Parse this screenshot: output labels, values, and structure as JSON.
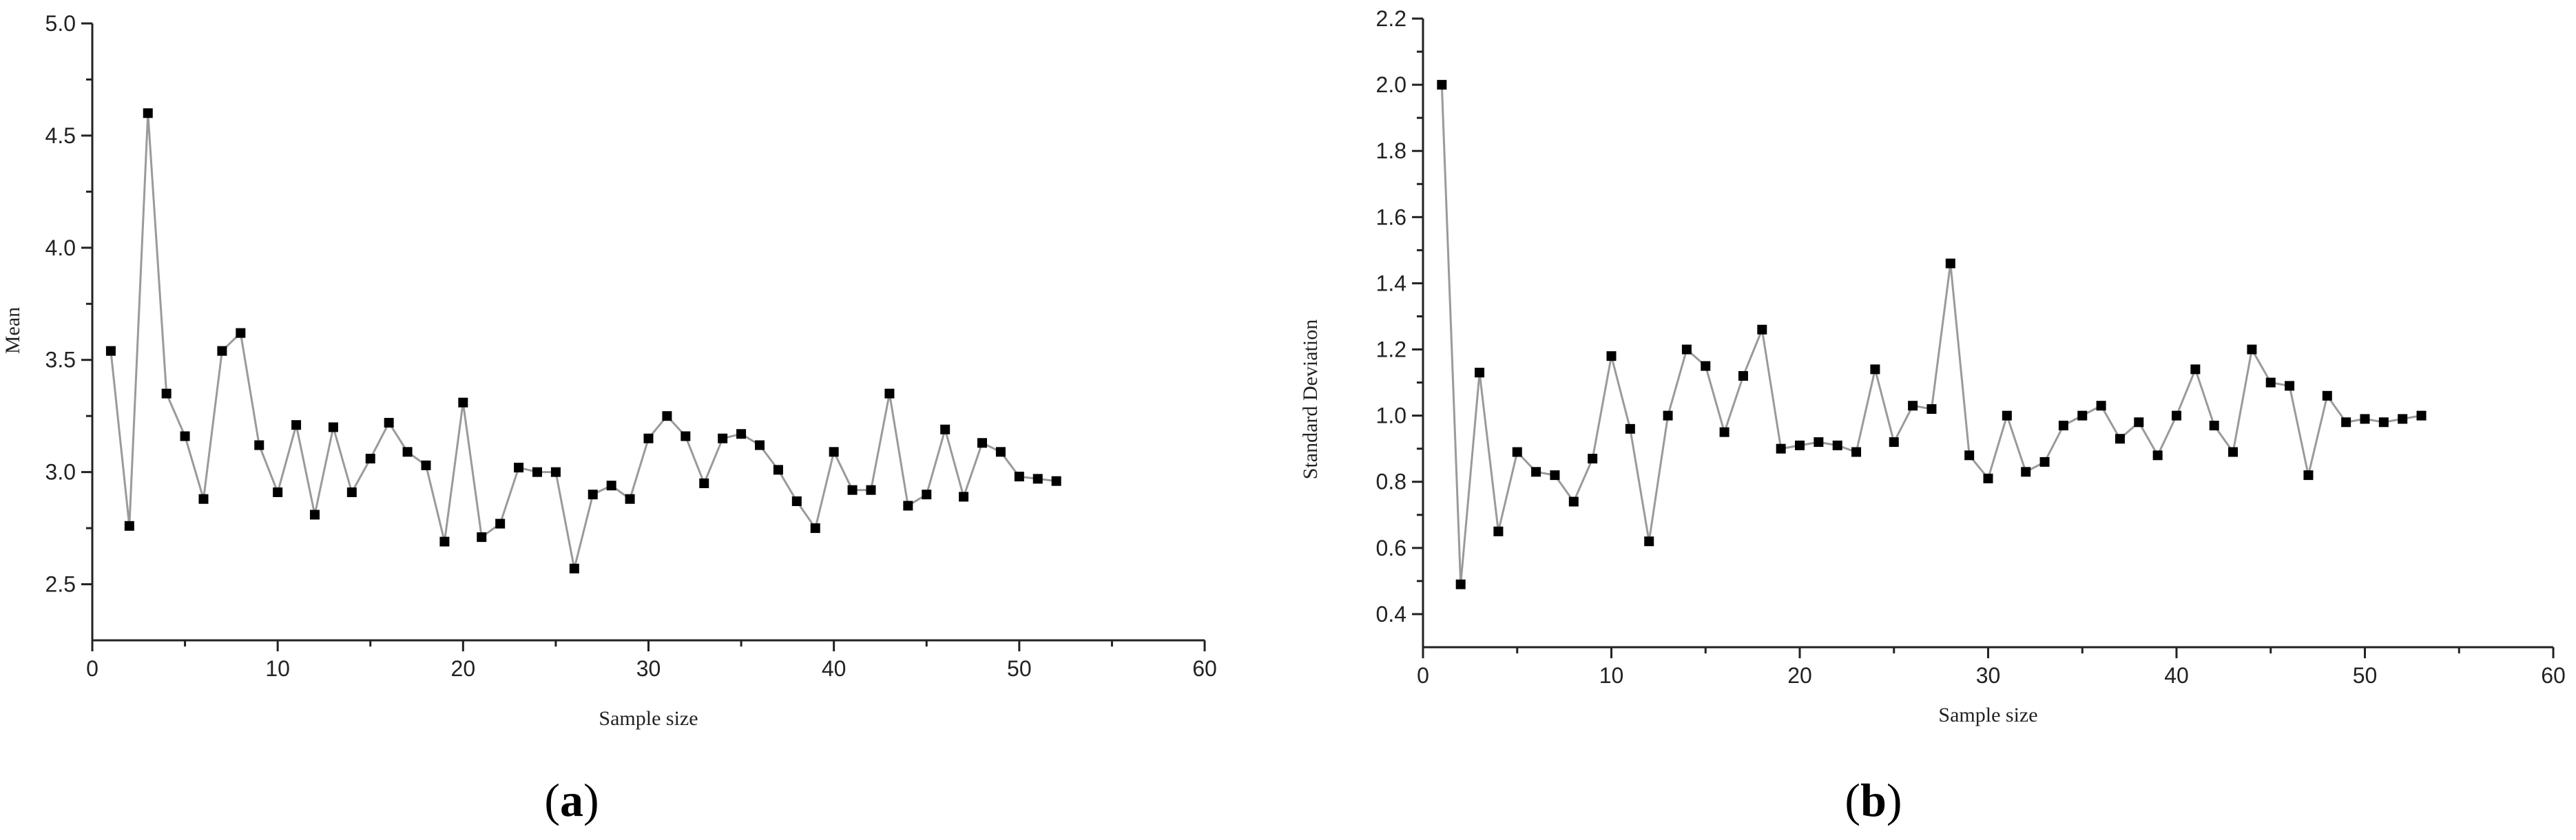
{
  "chart_data": [
    {
      "type": "line",
      "panel": "a",
      "xlabel": "Sample size",
      "ylabel": "Mean",
      "xlim": [
        0,
        60
      ],
      "ylim": [
        2.25,
        5.0
      ],
      "xticks": [
        0,
        10,
        20,
        30,
        40,
        50,
        60
      ],
      "yticks": [
        2.5,
        3.0,
        3.5,
        4.0,
        4.5,
        5.0
      ],
      "ytick_labels": [
        "2.5",
        "3.0",
        "3.5",
        "4.0",
        "4.5",
        "5.0"
      ],
      "grid": false,
      "series": [
        {
          "x": [
            1,
            2,
            3,
            4,
            5,
            6,
            7,
            8,
            9,
            10,
            11,
            12,
            13,
            14,
            15,
            16,
            17,
            18,
            19,
            20,
            21,
            22,
            23,
            24,
            25,
            26,
            27,
            28,
            29,
            30,
            31,
            32,
            33,
            34,
            35,
            36,
            37,
            38,
            39,
            40,
            41,
            42,
            43,
            44,
            45,
            46,
            47,
            48,
            49,
            50,
            51,
            52
          ],
          "y": [
            3.54,
            2.76,
            4.6,
            3.35,
            3.16,
            2.88,
            3.54,
            3.62,
            3.12,
            2.91,
            3.21,
            2.81,
            3.2,
            2.91,
            3.06,
            3.22,
            3.09,
            3.03,
            2.69,
            3.31,
            2.71,
            2.77,
            3.02,
            3.0,
            3.0,
            2.57,
            2.9,
            2.94,
            2.88,
            3.15,
            3.25,
            3.16,
            2.95,
            3.15,
            3.17,
            3.12,
            3.01,
            2.87,
            2.75,
            3.09,
            2.92,
            2.92,
            3.35,
            2.85,
            2.9,
            3.19,
            2.89,
            3.13,
            3.09,
            2.98,
            2.97,
            2.96
          ]
        }
      ]
    },
    {
      "type": "line",
      "panel": "b",
      "xlabel": "Sample size",
      "ylabel": "Standard Deviation",
      "xlim": [
        0,
        60
      ],
      "ylim": [
        0.3,
        2.2
      ],
      "xticks": [
        0,
        10,
        20,
        30,
        40,
        50,
        60
      ],
      "yticks": [
        0.4,
        0.6,
        0.8,
        1.0,
        1.2,
        1.4,
        1.6,
        1.8,
        2.0,
        2.2
      ],
      "ytick_labels": [
        "0.4",
        "0.6",
        "0.8",
        "1.0",
        "1.2",
        "1.4",
        "1.6",
        "1.8",
        "2.0",
        "2.2"
      ],
      "grid": false,
      "series": [
        {
          "x": [
            1,
            2,
            3,
            4,
            5,
            6,
            7,
            8,
            9,
            10,
            11,
            12,
            13,
            14,
            15,
            16,
            17,
            18,
            19,
            20,
            21,
            22,
            23,
            24,
            25,
            26,
            27,
            28,
            29,
            30,
            31,
            32,
            33,
            34,
            35,
            36,
            37,
            38,
            39,
            40,
            41,
            42,
            43,
            44,
            45,
            46,
            47,
            48,
            49,
            50,
            51,
            52,
            53
          ],
          "y": [
            2.0,
            0.49,
            1.13,
            0.65,
            0.89,
            0.83,
            0.82,
            0.74,
            0.87,
            1.18,
            0.96,
            0.62,
            1.0,
            1.2,
            1.15,
            0.95,
            1.12,
            1.26,
            0.9,
            0.91,
            0.92,
            0.91,
            0.89,
            1.14,
            0.92,
            1.03,
            1.02,
            1.46,
            0.88,
            0.81,
            1.0,
            0.83,
            0.86,
            0.97,
            1.0,
            1.03,
            0.93,
            0.98,
            0.88,
            1.0,
            1.14,
            0.97,
            0.89,
            1.2,
            1.1,
            1.09,
            0.82,
            1.06,
            0.98,
            0.99,
            0.98,
            0.99,
            1.0
          ]
        }
      ]
    }
  ],
  "panel_labels": {
    "a": {
      "open": "(",
      "letter": "a",
      "close": ")"
    },
    "b": {
      "open": "(",
      "letter": "b",
      "close": ")"
    }
  }
}
